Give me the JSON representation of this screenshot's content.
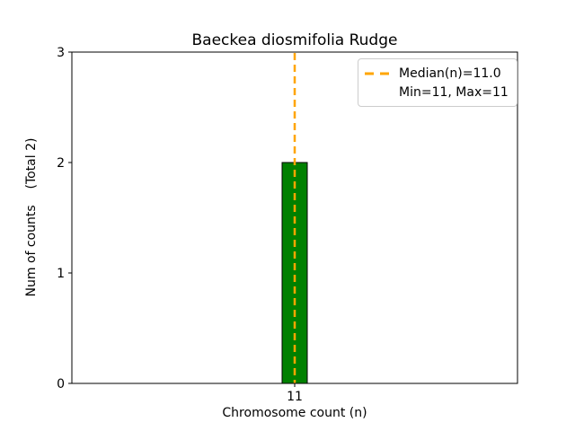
{
  "chart_data": {
    "type": "bar",
    "title": "Baeckea diosmifolia Rudge",
    "xlabel": "Chromosome count (n)",
    "ylabel": "Num of counts    (Total 2)",
    "categories": [
      "11"
    ],
    "values": [
      2
    ],
    "total_counts": 2,
    "ylim": [
      0,
      3
    ],
    "yticks": [
      0,
      1,
      2,
      3
    ],
    "grid": false,
    "bar_color": "#008000",
    "bar_edge_color": "#000000",
    "median_line": {
      "category": "11",
      "value": 11.0,
      "color": "#FFA500",
      "style": "dashed"
    },
    "legend": {
      "position": "upper right",
      "entries": [
        {
          "label": "Median(n)=11.0",
          "sample": "orange-dashed-line"
        },
        {
          "label": "Min=11, Max=11",
          "sample": "none"
        }
      ]
    }
  }
}
